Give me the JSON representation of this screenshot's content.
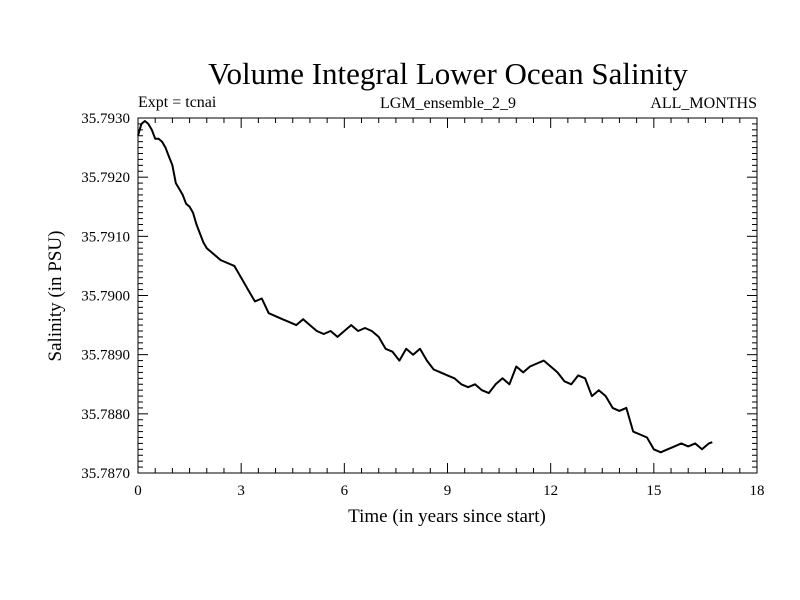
{
  "chart_data": {
    "type": "line",
    "title": "Volume Integral Lower Ocean Salinity",
    "subtitle_left": "Expt = tcnai",
    "subtitle_center": "LGM_ensemble_2_9",
    "subtitle_right": "ALL_MONTHS",
    "xlabel": "Time (in years since start)",
    "ylabel": "Salinity (in PSU)",
    "xlim": [
      0,
      18
    ],
    "ylim": [
      35.787,
      35.793
    ],
    "xticks": [
      0,
      3,
      6,
      9,
      12,
      15,
      18
    ],
    "xtick_labels": [
      "0",
      "3",
      "6",
      "9",
      "12",
      "15",
      "18"
    ],
    "yticks": [
      35.787,
      35.788,
      35.789,
      35.79,
      35.791,
      35.792,
      35.793
    ],
    "ytick_labels": [
      "35.7870",
      "35.7880",
      "35.7890",
      "35.7900",
      "35.7910",
      "35.7920",
      "35.7930"
    ],
    "grid": false,
    "series": [
      {
        "name": "salinity",
        "x": [
          0.0,
          0.1,
          0.2,
          0.3,
          0.4,
          0.5,
          0.6,
          0.7,
          0.8,
          0.9,
          1.0,
          1.1,
          1.2,
          1.3,
          1.4,
          1.5,
          1.6,
          1.7,
          1.8,
          1.9,
          2.0,
          2.2,
          2.4,
          2.6,
          2.8,
          3.0,
          3.2,
          3.4,
          3.6,
          3.8,
          4.0,
          4.2,
          4.4,
          4.6,
          4.8,
          5.0,
          5.2,
          5.4,
          5.6,
          5.8,
          6.0,
          6.2,
          6.4,
          6.6,
          6.8,
          7.0,
          7.2,
          7.4,
          7.6,
          7.8,
          8.0,
          8.2,
          8.4,
          8.6,
          8.8,
          9.0,
          9.2,
          9.4,
          9.6,
          9.8,
          10.0,
          10.2,
          10.4,
          10.6,
          10.8,
          11.0,
          11.2,
          11.4,
          11.6,
          11.8,
          12.0,
          12.2,
          12.4,
          12.6,
          12.8,
          13.0,
          13.2,
          13.4,
          13.6,
          13.8,
          14.0,
          14.2,
          14.4,
          14.6,
          14.8,
          15.0,
          15.2,
          15.4,
          15.6,
          15.8,
          16.0,
          16.2,
          16.4,
          16.6,
          16.7
        ],
        "y": [
          35.7927,
          35.7929,
          35.79295,
          35.7929,
          35.7928,
          35.79265,
          35.79265,
          35.7926,
          35.7925,
          35.79235,
          35.7922,
          35.7919,
          35.7918,
          35.7917,
          35.79155,
          35.7915,
          35.7914,
          35.7912,
          35.79105,
          35.7909,
          35.7908,
          35.7907,
          35.7906,
          35.79055,
          35.7905,
          35.7903,
          35.7901,
          35.7899,
          35.78995,
          35.7897,
          35.78965,
          35.7896,
          35.78955,
          35.7895,
          35.7896,
          35.7895,
          35.7894,
          35.78935,
          35.7894,
          35.7893,
          35.7894,
          35.7895,
          35.7894,
          35.78945,
          35.7894,
          35.7893,
          35.7891,
          35.78905,
          35.7889,
          35.7891,
          35.789,
          35.7891,
          35.7889,
          35.78875,
          35.7887,
          35.78865,
          35.7886,
          35.7885,
          35.78845,
          35.7885,
          35.7884,
          35.78835,
          35.7885,
          35.7886,
          35.7885,
          35.7888,
          35.7887,
          35.7888,
          35.78885,
          35.7889,
          35.7888,
          35.7887,
          35.78855,
          35.7885,
          35.78865,
          35.7886,
          35.7883,
          35.7884,
          35.7883,
          35.7881,
          35.78805,
          35.7881,
          35.7877,
          35.78765,
          35.7876,
          35.7874,
          35.78735,
          35.7874,
          35.78745,
          35.7875,
          35.78745,
          35.7875,
          35.7874,
          35.7875,
          35.78752
        ]
      }
    ]
  }
}
